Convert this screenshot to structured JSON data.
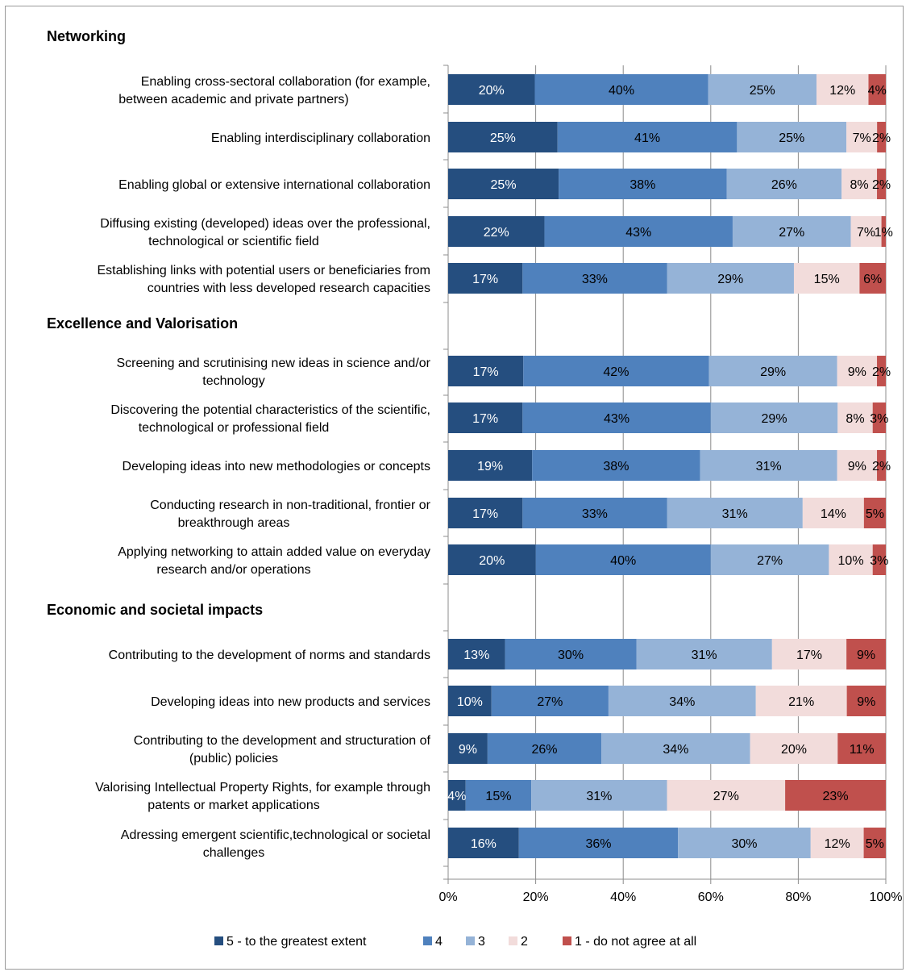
{
  "chart_data": {
    "type": "bar",
    "orientation": "horizontal",
    "stacked": true,
    "normalized": true,
    "xlim": [
      0,
      100
    ],
    "xticks": [
      "0%",
      "20%",
      "40%",
      "60%",
      "80%",
      "100%"
    ],
    "grid": true,
    "legend_position": "bottom",
    "series": [
      {
        "name": "5 - to the greatest extent",
        "color": "#254e7f"
      },
      {
        "name": "4",
        "color": "#4f81bd"
      },
      {
        "name": "3",
        "color": "#95b3d7"
      },
      {
        "name": "2",
        "color": "#f2dcdb"
      },
      {
        "name": "1 - do not agree at all",
        "color": "#c0504d"
      }
    ],
    "groups": [
      {
        "title": "Networking",
        "items": [
          {
            "label": [
              "Enabling cross-sectoral collaboration (for example,",
              "between academic and private partners)"
            ],
            "values": [
              20,
              40,
              25,
              12,
              4
            ]
          },
          {
            "label": [
              "Enabling interdisciplinary collaboration"
            ],
            "values": [
              25,
              41,
              25,
              7,
              2
            ]
          },
          {
            "label": [
              "Enabling global or extensive international  collaboration"
            ],
            "values": [
              25,
              38,
              26,
              8,
              2
            ]
          },
          {
            "label": [
              "Diffusing existing (developed) ideas over the professional,",
              "technological or scientific field"
            ],
            "values": [
              22,
              43,
              27,
              7,
              1
            ]
          },
          {
            "label": [
              "Establishing links with potential users or beneficiaries from",
              "countries with less developed research capacities"
            ],
            "values": [
              17,
              33,
              29,
              15,
              6
            ]
          }
        ]
      },
      {
        "title": "Excellence and Valorisation",
        "items": [
          {
            "label": [
              "Screening and scrutinising new ideas in science and/or",
              "technology"
            ],
            "values": [
              17,
              42,
              29,
              9,
              2
            ]
          },
          {
            "label": [
              "Discovering the potential characteristics of the scientific,",
              "technological or professional field"
            ],
            "values": [
              17,
              43,
              29,
              8,
              3
            ]
          },
          {
            "label": [
              "Developing ideas into new methodologies or concepts"
            ],
            "values": [
              19,
              38,
              31,
              9,
              2
            ]
          },
          {
            "label": [
              "Conducting research in non-traditional,  frontier or",
              "breakthrough areas"
            ],
            "values": [
              17,
              33,
              31,
              14,
              5
            ]
          },
          {
            "label": [
              "Applying networking to attain added value on everyday",
              "research and/or operations"
            ],
            "values": [
              20,
              40,
              27,
              10,
              3
            ]
          }
        ]
      },
      {
        "title": "Economic and societal impacts",
        "items": [
          {
            "label": [
              "Contributing to the development of norms and standards"
            ],
            "values": [
              13,
              30,
              31,
              17,
              9
            ]
          },
          {
            "label": [
              "Developing ideas into new products and services"
            ],
            "values": [
              10,
              27,
              34,
              21,
              9
            ]
          },
          {
            "label": [
              "Contributing to the development and structuration of",
              "(public) policies"
            ],
            "values": [
              9,
              26,
              34,
              20,
              11
            ]
          },
          {
            "label": [
              "Valorising Intellectual Property Rights, for example through",
              "patents or market applications"
            ],
            "values": [
              4,
              15,
              31,
              27,
              23
            ]
          },
          {
            "label": [
              "Adressing emergent scientific,technological or societal",
              "challenges"
            ],
            "values": [
              16,
              36,
              30,
              12,
              5
            ]
          }
        ]
      }
    ]
  }
}
